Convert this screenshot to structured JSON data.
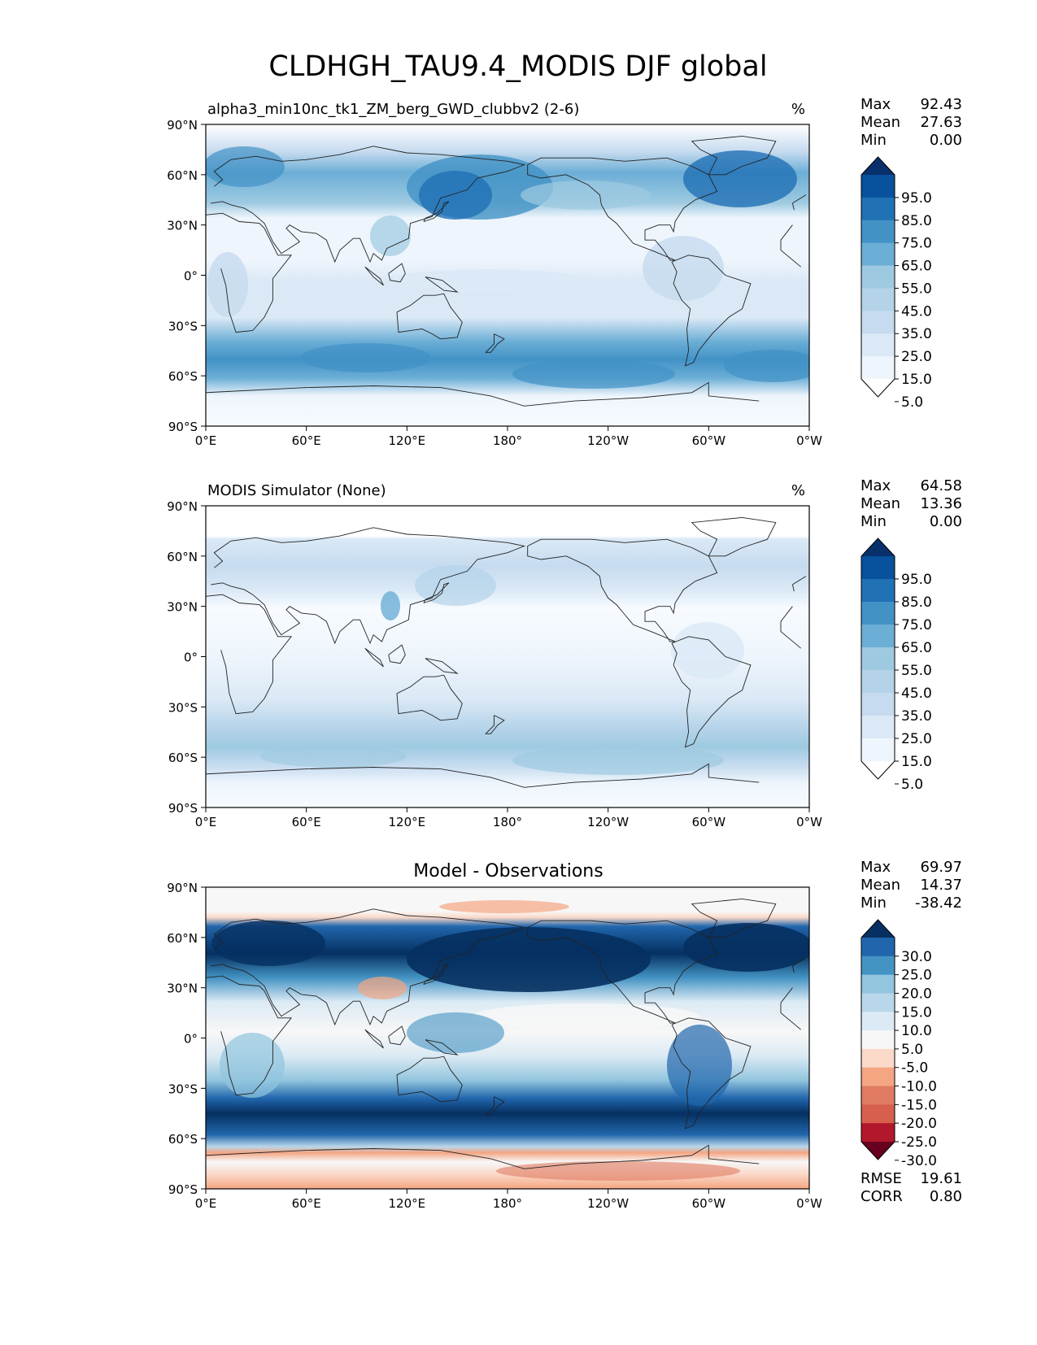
{
  "figure": {
    "title": "CLDHGH_TAU9.4_MODIS DJF global"
  },
  "axes": {
    "lat_ticks": [
      "90°N",
      "60°N",
      "30°N",
      "0°",
      "30°S",
      "60°S",
      "90°S"
    ],
    "lon_ticks": [
      "0°E",
      "60°E",
      "120°E",
      "180°",
      "120°W",
      "60°W",
      "0°W"
    ]
  },
  "panels": [
    {
      "id": "test",
      "left_title": "alpha3_min10nc_tk1_ZM_berg_GWD_clubbv2 (2-6)",
      "center_title": "",
      "units": "%",
      "stats": [
        {
          "label": "Max",
          "value": "92.43"
        },
        {
          "label": "Mean",
          "value": "27.63"
        },
        {
          "label": "Min",
          "value": "0.00"
        }
      ],
      "colorbar_labels": [
        "95.0",
        "85.0",
        "75.0",
        "65.0",
        "55.0",
        "45.0",
        "35.0",
        "25.0",
        "15.0",
        "5.0"
      ],
      "colorbar_colors": [
        "#08306b",
        "#08519c",
        "#2171b5",
        "#4292c6",
        "#6baed6",
        "#9ecae1",
        "#b4d3e9",
        "#c6dbef",
        "#dbe9f6",
        "#eef5fc",
        "#ffffff"
      ],
      "extra_stats": []
    },
    {
      "id": "reference",
      "left_title": "MODIS Simulator (None)",
      "center_title": "",
      "units": "%",
      "stats": [
        {
          "label": "Max",
          "value": "64.58"
        },
        {
          "label": "Mean",
          "value": "13.36"
        },
        {
          "label": "Min",
          "value": "0.00"
        }
      ],
      "colorbar_labels": [
        "95.0",
        "85.0",
        "75.0",
        "65.0",
        "55.0",
        "45.0",
        "35.0",
        "25.0",
        "15.0",
        "5.0"
      ],
      "colorbar_colors": [
        "#08306b",
        "#08519c",
        "#2171b5",
        "#4292c6",
        "#6baed6",
        "#9ecae1",
        "#b4d3e9",
        "#c6dbef",
        "#dbe9f6",
        "#eef5fc",
        "#ffffff"
      ],
      "extra_stats": []
    },
    {
      "id": "difference",
      "left_title": "",
      "center_title": "Model - Observations",
      "units": "",
      "stats": [
        {
          "label": "Max",
          "value": "69.97"
        },
        {
          "label": "Mean",
          "value": "14.37"
        },
        {
          "label": "Min",
          "value": "-38.42"
        }
      ],
      "colorbar_labels": [
        "30.0",
        "25.0",
        "20.0",
        "15.0",
        "10.0",
        "5.0",
        "-5.0",
        "-10.0",
        "-15.0",
        "-20.0",
        "-25.0",
        "-30.0"
      ],
      "colorbar_colors": [
        "#053061",
        "#2166ac",
        "#4393c3",
        "#92c5de",
        "#b9d7ea",
        "#dbeaf4",
        "#f7f7f7",
        "#fbd9c9",
        "#f4a582",
        "#e07b62",
        "#d6604d",
        "#b2182b",
        "#67001f"
      ],
      "extra_stats": [
        {
          "label": "RMSE",
          "value": "19.61"
        },
        {
          "label": "CORR",
          "value": "0.80"
        }
      ]
    }
  ]
}
